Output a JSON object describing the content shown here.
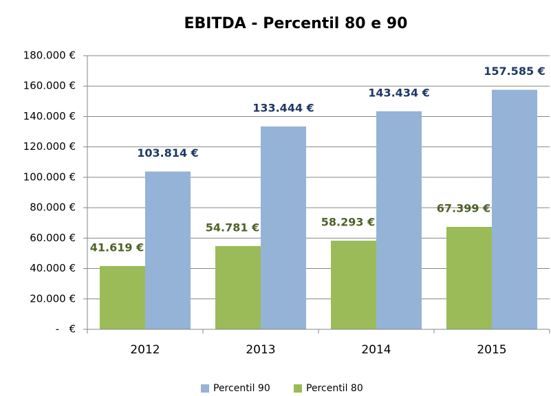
{
  "chart_data": {
    "type": "bar",
    "title": "EBITDA - Percentil 80 e 90",
    "categories": [
      "2012",
      "2013",
      "2014",
      "2015"
    ],
    "series": [
      {
        "name": "Percentil 80",
        "color": "#9bbb59",
        "values": [
          41619,
          54781,
          58293,
          67399
        ],
        "value_labels": [
          "41.619 €",
          "54.781 €",
          "58.293 €",
          "67.399 €"
        ]
      },
      {
        "name": "Percentil 90",
        "color": "#95b3d7",
        "values": [
          103814,
          133444,
          143434,
          157585
        ],
        "value_labels": [
          "103.814 €",
          "133.444 €",
          "143.434 €",
          "157.585 €"
        ]
      }
    ],
    "ylim": [
      0,
      180000
    ],
    "yticks": [
      {
        "value": 0,
        "label": "-   €"
      },
      {
        "value": 20000,
        "label": "20.000 €"
      },
      {
        "value": 40000,
        "label": "40.000 €"
      },
      {
        "value": 60000,
        "label": "60.000 €"
      },
      {
        "value": 80000,
        "label": "80.000 €"
      },
      {
        "value": 100000,
        "label": "100.000 €"
      },
      {
        "value": 120000,
        "label": "120.000 €"
      },
      {
        "value": 140000,
        "label": "140.000 €"
      },
      {
        "value": 160000,
        "label": "160.000 €"
      },
      {
        "value": 180000,
        "label": "180.000 €"
      }
    ],
    "grid": true,
    "legend": "bottom"
  }
}
